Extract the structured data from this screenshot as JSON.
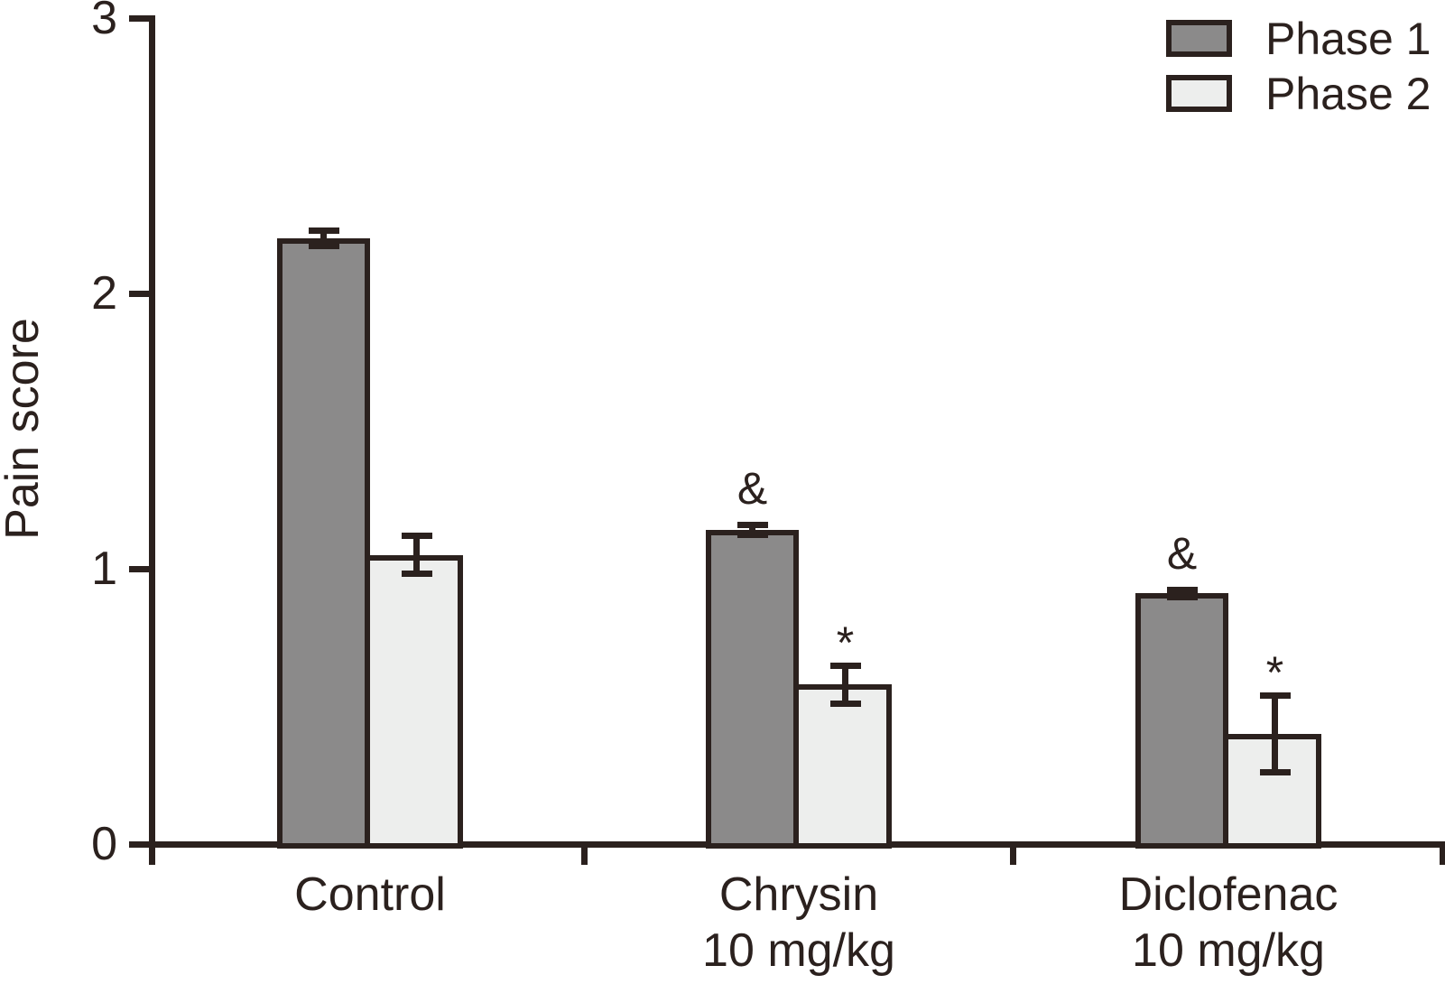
{
  "figure": {
    "background": "#ffffff",
    "ink": "#2b211e",
    "ylabel": "Pain score"
  },
  "chart_data": {
    "type": "bar",
    "title": "",
    "xlabel": "",
    "ylabel": "Pain score",
    "ylim": [
      0,
      3
    ],
    "yticks": [
      0,
      1,
      2,
      3
    ],
    "grid": false,
    "legend_position": "top-right",
    "categories": [
      "Control",
      "Chrysin 10 mg/kg",
      "Diclofenac 10 mg/kg"
    ],
    "category_label_lines": [
      [
        "Control"
      ],
      [
        "Chrysin",
        "10 mg/kg"
      ],
      [
        "Diclofenac",
        "10 mg/kg"
      ]
    ],
    "series": [
      {
        "name": "Phase 1",
        "color": "#8b8a8a",
        "values": [
          2.2,
          1.14,
          0.91
        ],
        "errors": [
          0.04,
          0.03,
          0.025
        ],
        "annotations": [
          "",
          "&",
          "&"
        ]
      },
      {
        "name": "Phase 2",
        "color": "#edeeed",
        "values": [
          1.05,
          0.58,
          0.4
        ],
        "errors": [
          0.08,
          0.08,
          0.15
        ],
        "annotations": [
          "",
          "*",
          "*"
        ]
      }
    ]
  }
}
